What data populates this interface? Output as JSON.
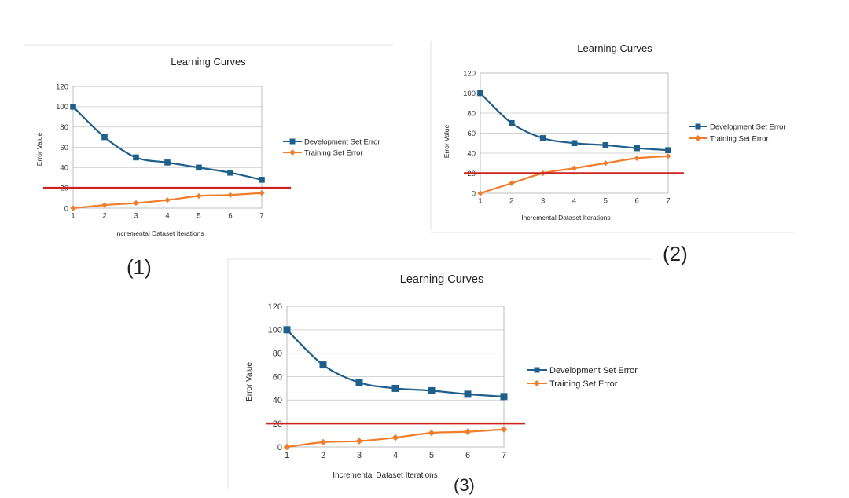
{
  "chart_data": [
    {
      "type": "line",
      "title": "Learning Curves",
      "xlabel": "Incremental Dataset Iterations",
      "ylabel": "Error Value",
      "categories": [
        1,
        2,
        3,
        4,
        5,
        6,
        7
      ],
      "yticks": [
        0,
        20,
        40,
        60,
        80,
        100,
        120
      ],
      "ylim": [
        0,
        120
      ],
      "grid": true,
      "legend": "right",
      "series": [
        {
          "name": "Development Set Error",
          "values": [
            100,
            70,
            50,
            45,
            40,
            35,
            28
          ],
          "marker": "square",
          "color": "#1f5f8b"
        },
        {
          "name": "Training Set Error",
          "values": [
            0,
            3,
            5,
            8,
            12,
            13,
            15
          ],
          "marker": "diamond",
          "color": "#f07d2a"
        }
      ],
      "reference_line": {
        "value": 20,
        "color": "#cc2222"
      },
      "panel_label": "(1)"
    },
    {
      "type": "line",
      "title": "Learning Curves",
      "xlabel": "Incremental Dataset Iterations",
      "ylabel": "Error Value",
      "categories": [
        1,
        2,
        3,
        4,
        5,
        6,
        7
      ],
      "yticks": [
        0,
        20,
        40,
        60,
        80,
        100,
        120
      ],
      "ylim": [
        0,
        120
      ],
      "grid": true,
      "legend": "right",
      "series": [
        {
          "name": "Development Set Error",
          "values": [
            100,
            70,
            55,
            50,
            48,
            45,
            43
          ],
          "marker": "square",
          "color": "#1f5f8b"
        },
        {
          "name": "Training Set Error",
          "values": [
            0,
            10,
            20,
            25,
            30,
            35,
            37
          ],
          "marker": "diamond",
          "color": "#f07d2a"
        }
      ],
      "reference_line": {
        "value": 20,
        "color": "#cc2222"
      },
      "panel_label": "(2)"
    },
    {
      "type": "line",
      "title": "Learning Curves",
      "xlabel": "Incremental Dataset Iterations",
      "ylabel": "Error Value",
      "categories": [
        1,
        2,
        3,
        4,
        5,
        6,
        7
      ],
      "yticks": [
        0,
        20,
        40,
        60,
        80,
        100,
        120
      ],
      "ylim": [
        0,
        120
      ],
      "grid": true,
      "legend": "right",
      "series": [
        {
          "name": "Development Set Error",
          "values": [
            100,
            70,
            55,
            50,
            48,
            45,
            43
          ],
          "marker": "square",
          "color": "#1f5f8b"
        },
        {
          "name": "Training Set Error",
          "values": [
            0,
            4,
            5,
            8,
            12,
            13,
            15
          ],
          "marker": "diamond",
          "color": "#f07d2a"
        }
      ],
      "reference_line": {
        "value": 20,
        "color": "#cc2222"
      },
      "panel_label": "(3)"
    }
  ]
}
